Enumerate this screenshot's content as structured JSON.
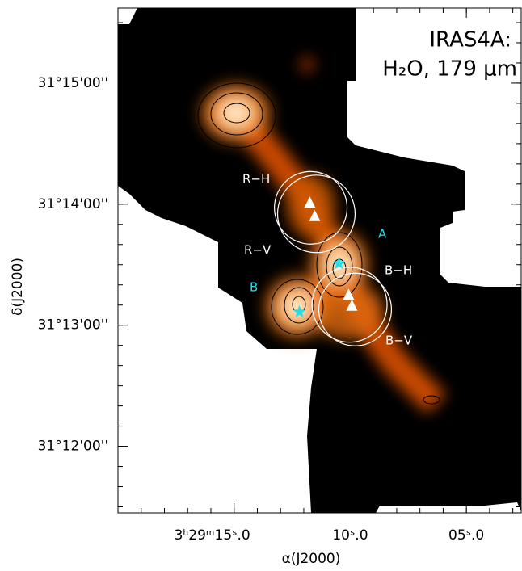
{
  "chart_data": {
    "type": "map",
    "title": "IRAS4A:",
    "subtitle": "H₂O, 179 μm",
    "x_label": "α(J2000)",
    "y_label": "δ(J2000)",
    "xlim": [
      20,
      2.64
    ],
    "ylim": [
      11.45,
      15.62
    ],
    "xticks": [
      {
        "value": 15,
        "label": "3ʰ29ᵐ15ˢ.0"
      },
      {
        "value": 10,
        "label": "10ˢ.0"
      },
      {
        "value": 5,
        "label": "05ˢ.0"
      }
    ],
    "yticks": [
      {
        "value": 15,
        "label": "31°15'00''"
      },
      {
        "value": 14,
        "label": "31°14'00''"
      },
      {
        "value": 13,
        "label": "31°13'00''"
      },
      {
        "value": 12,
        "label": "31°12'00''"
      }
    ],
    "stars": {
      "color": "#22e0e8",
      "x": [
        10.49,
        12.19
      ],
      "y": [
        13.51,
        13.11
      ]
    },
    "triangles": {
      "color": "#ffffff",
      "x": [
        11.74,
        11.53,
        10.07,
        9.93
      ],
      "y": [
        14.01,
        13.9,
        13.25,
        13.16
      ]
    },
    "circles": {
      "color": "#ffffff",
      "x": [
        11.7,
        11.46,
        10.03,
        9.79
      ],
      "y": [
        13.97,
        13.92,
        13.17,
        13.13
      ],
      "r": [
        0.3,
        0.32,
        0.31,
        0.3
      ]
    },
    "annotations": [
      "R−H",
      "R−V",
      "B−H",
      "B−V",
      "A",
      "B"
    ]
  }
}
